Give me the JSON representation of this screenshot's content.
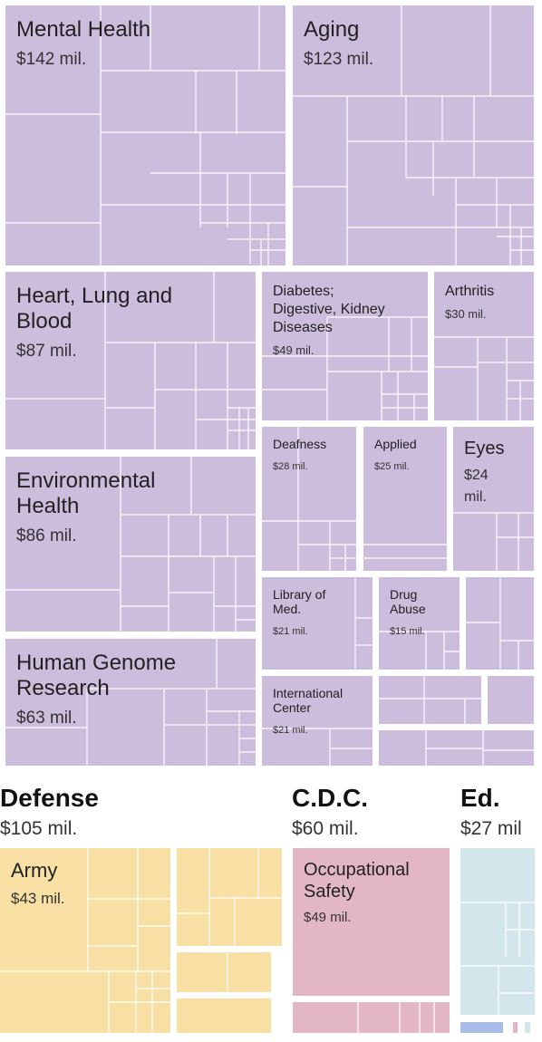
{
  "chart_data": {
    "type": "treemap",
    "unit": "mil.",
    "colors": {
      "nih": "#cbbddb",
      "defense": "#f8e0a5",
      "cdc": "#e2b6c6",
      "ed": "#d3e6ec",
      "ed_accent": "#a9bde8",
      "ed_accent2": "#e2b6c6",
      "divider": "#ffffff"
    },
    "agencies": [
      {
        "id": "nih",
        "name": "",
        "total": "",
        "blocks": [
          {
            "id": "mental-health",
            "label": "Mental Health",
            "value": "$142 mil.",
            "amount": 142
          },
          {
            "id": "aging",
            "label": "Aging",
            "value": "$123 mil.",
            "amount": 123
          },
          {
            "id": "heart-lung-blood",
            "label": "Heart, Lung and Blood",
            "value": "$87 mil.",
            "amount": 87
          },
          {
            "id": "diabetes",
            "label": "Diabetes; Digestive, Kidney Diseases",
            "value": "$49 mil.",
            "amount": 49
          },
          {
            "id": "arthritis",
            "label": "Arthritis",
            "value": "$30 mil.",
            "amount": 30
          },
          {
            "id": "environmental-health",
            "label": "Environmental Health",
            "value": "$86 mil.",
            "amount": 86
          },
          {
            "id": "deafness",
            "label": "Deafness",
            "value": "$28 mil.",
            "amount": 28
          },
          {
            "id": "applied",
            "label": "Applied",
            "value": "$25 mil.",
            "amount": 25
          },
          {
            "id": "eyes",
            "label": "Eyes",
            "value": "$24 mil.",
            "amount": 24
          },
          {
            "id": "human-genome",
            "label": "Human Genome Research",
            "value": "$63 mil.",
            "amount": 63
          },
          {
            "id": "library-of-med",
            "label": "Library of Med.",
            "value": "$21 mil.",
            "amount": 21
          },
          {
            "id": "drug-abuse",
            "label": "Drug Abuse",
            "value": "$15 mil.",
            "amount": 15
          },
          {
            "id": "international-center",
            "label": "International Center",
            "value": "$21 mil.",
            "amount": 21
          },
          {
            "id": "nih-other-1",
            "label": "",
            "value": "",
            "amount": null
          },
          {
            "id": "nih-other-2",
            "label": "",
            "value": "",
            "amount": null
          },
          {
            "id": "nih-other-3",
            "label": "",
            "value": "",
            "amount": null
          },
          {
            "id": "nih-other-4",
            "label": "",
            "value": "",
            "amount": null
          }
        ]
      },
      {
        "id": "defense",
        "name": "Defense",
        "total": "$105 mil.",
        "amount": 105,
        "blocks": [
          {
            "id": "army",
            "label": "Army",
            "value": "$43 mil.",
            "amount": 43
          },
          {
            "id": "defense-other-1",
            "label": "",
            "value": "",
            "amount": null
          },
          {
            "id": "defense-other-2",
            "label": "",
            "value": "",
            "amount": null
          },
          {
            "id": "defense-other-3",
            "label": "",
            "value": "",
            "amount": null
          }
        ]
      },
      {
        "id": "cdc",
        "name": "C.D.C.",
        "total": "$60 mil.",
        "amount": 60,
        "blocks": [
          {
            "id": "occupational-safety",
            "label": "Occupational Safety",
            "value": "$49 mil.",
            "amount": 49
          },
          {
            "id": "cdc-other-1",
            "label": "",
            "value": "",
            "amount": null
          }
        ]
      },
      {
        "id": "ed",
        "name": "Ed.",
        "total": "$27 mil",
        "amount": 27,
        "blocks": [
          {
            "id": "ed-other-1",
            "label": "",
            "value": "",
            "amount": null
          }
        ]
      }
    ]
  }
}
